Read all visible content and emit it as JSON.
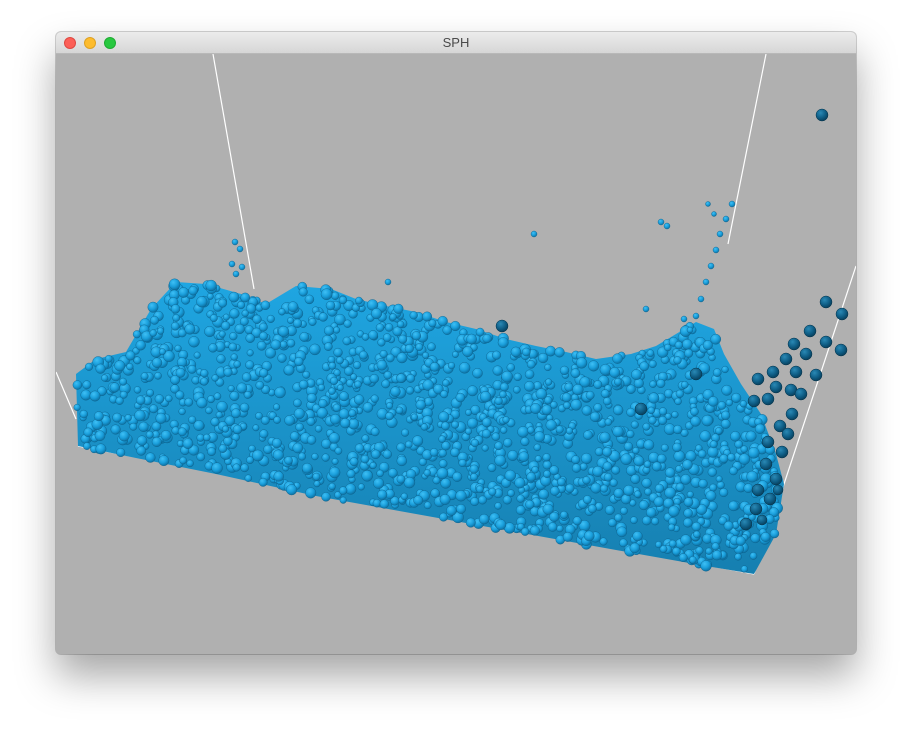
{
  "window": {
    "title": "SPH",
    "buttons": {
      "close": "close",
      "minimize": "minimize",
      "zoom": "zoom"
    }
  },
  "scene": {
    "background_color": "#b0b0b0",
    "particle_color": "#1a9fdc",
    "particle_dark_color": "#0b4f70",
    "container_line_color": "#ffffff"
  }
}
